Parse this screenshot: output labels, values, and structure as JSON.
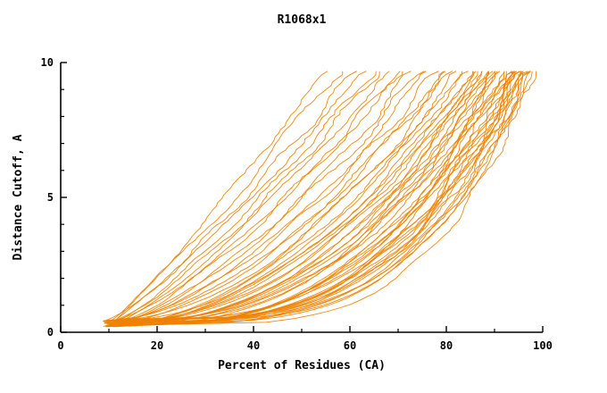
{
  "page": {
    "background": "#ffffff"
  },
  "chart_data": {
    "type": "line",
    "title": "R1068x1",
    "xlabel": "Percent of Residues (CA)",
    "ylabel": "Distance Cutoff, A",
    "xlim": [
      0,
      100
    ],
    "ylim": [
      0,
      10
    ],
    "x_major_ticks": [
      0,
      20,
      40,
      60,
      80,
      100
    ],
    "x_minor_step": 10,
    "y_major_ticks": [
      0,
      5,
      10
    ],
    "y_minor_step": 1,
    "grid": false,
    "legend": "none",
    "line_color": "#EE8200",
    "axis_color": "#000000",
    "curve_model": "x(y) = start + (end - start) * ((y - y0)/(9.7 - y0))^shape, cutoff y runs 0.25..9.7 A; each curve is one model's percent of CA residues under distance cutoff",
    "curves": [
      {
        "start": 10.0,
        "end": 55,
        "shape": 0.92
      },
      {
        "start": 9.5,
        "end": 58,
        "shape": 0.88
      },
      {
        "start": 10.5,
        "end": 61,
        "shape": 0.86
      },
      {
        "start": 9.0,
        "end": 63,
        "shape": 0.81
      },
      {
        "start": 11.0,
        "end": 65,
        "shape": 0.83
      },
      {
        "start": 9.8,
        "end": 66,
        "shape": 0.76
      },
      {
        "start": 10.2,
        "end": 68,
        "shape": 0.78
      },
      {
        "start": 8.8,
        "end": 70,
        "shape": 0.7
      },
      {
        "start": 10.8,
        "end": 71,
        "shape": 0.74
      },
      {
        "start": 9.3,
        "end": 73,
        "shape": 0.66
      },
      {
        "start": 10.0,
        "end": 75,
        "shape": 0.68
      },
      {
        "start": 9.6,
        "end": 76,
        "shape": 0.6
      },
      {
        "start": 10.4,
        "end": 78,
        "shape": 0.62
      },
      {
        "start": 8.9,
        "end": 79,
        "shape": 0.55
      },
      {
        "start": 11.2,
        "end": 80,
        "shape": 0.59
      },
      {
        "start": 9.1,
        "end": 81,
        "shape": 0.52
      },
      {
        "start": 10.6,
        "end": 82,
        "shape": 0.56
      },
      {
        "start": 9.4,
        "end": 83,
        "shape": 0.5
      },
      {
        "start": 10.1,
        "end": 84,
        "shape": 0.54
      },
      {
        "start": 8.7,
        "end": 85,
        "shape": 0.47
      },
      {
        "start": 10.9,
        "end": 86,
        "shape": 0.51
      },
      {
        "start": 9.2,
        "end": 86,
        "shape": 0.44
      },
      {
        "start": 10.3,
        "end": 87,
        "shape": 0.49
      },
      {
        "start": 9.7,
        "end": 87,
        "shape": 0.42
      },
      {
        "start": 10.7,
        "end": 88,
        "shape": 0.47
      },
      {
        "start": 9.0,
        "end": 88,
        "shape": 0.4
      },
      {
        "start": 10.0,
        "end": 89,
        "shape": 0.45
      },
      {
        "start": 9.5,
        "end": 89,
        "shape": 0.38
      },
      {
        "start": 10.5,
        "end": 90,
        "shape": 0.44
      },
      {
        "start": 8.8,
        "end": 90,
        "shape": 0.37
      },
      {
        "start": 11.0,
        "end": 90,
        "shape": 0.41
      },
      {
        "start": 9.3,
        "end": 91,
        "shape": 0.35
      },
      {
        "start": 10.2,
        "end": 91,
        "shape": 0.4
      },
      {
        "start": 9.8,
        "end": 92,
        "shape": 0.34
      },
      {
        "start": 10.6,
        "end": 92,
        "shape": 0.39
      },
      {
        "start": 9.1,
        "end": 92,
        "shape": 0.32
      },
      {
        "start": 10.8,
        "end": 93,
        "shape": 0.37
      },
      {
        "start": 9.4,
        "end": 93,
        "shape": 0.31
      },
      {
        "start": 10.0,
        "end": 93,
        "shape": 0.36
      },
      {
        "start": 9.6,
        "end": 94,
        "shape": 0.3
      },
      {
        "start": 10.4,
        "end": 94,
        "shape": 0.35
      },
      {
        "start": 8.9,
        "end": 94,
        "shape": 0.29
      },
      {
        "start": 10.1,
        "end": 95,
        "shape": 0.33
      },
      {
        "start": 9.2,
        "end": 95,
        "shape": 0.28
      },
      {
        "start": 10.7,
        "end": 95,
        "shape": 0.32
      },
      {
        "start": 9.9,
        "end": 95,
        "shape": 0.27
      },
      {
        "start": 10.3,
        "end": 96,
        "shape": 0.31
      },
      {
        "start": 9.0,
        "end": 96,
        "shape": 0.26
      },
      {
        "start": 10.9,
        "end": 96,
        "shape": 0.3
      },
      {
        "start": 9.5,
        "end": 97,
        "shape": 0.25
      },
      {
        "start": 10.0,
        "end": 97,
        "shape": 0.29
      },
      {
        "start": 9.7,
        "end": 97,
        "shape": 0.24
      },
      {
        "start": 10.5,
        "end": 98,
        "shape": 0.28
      },
      {
        "start": 9.3,
        "end": 98,
        "shape": 0.23
      },
      {
        "start": 10.2,
        "end": 98,
        "shape": 0.27
      }
    ]
  }
}
